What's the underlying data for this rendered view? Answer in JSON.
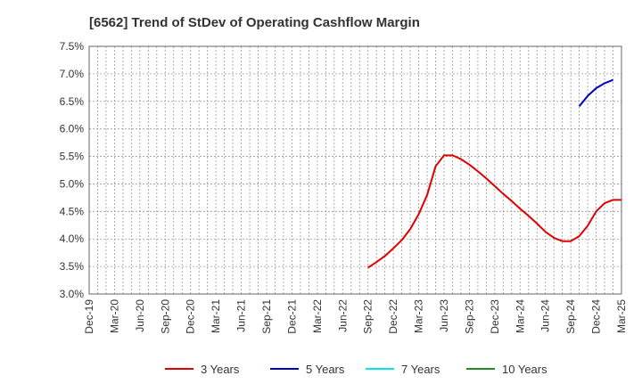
{
  "chart_data": {
    "type": "line",
    "title": "[6562]  Trend of StDev of Operating Cashflow Margin",
    "xlabel": "",
    "ylabel": "",
    "x_ticks": [
      "Dec-19",
      "Mar-20",
      "Jun-20",
      "Sep-20",
      "Dec-20",
      "Mar-21",
      "Jun-21",
      "Sep-21",
      "Dec-21",
      "Mar-22",
      "Jun-22",
      "Sep-22",
      "Dec-22",
      "Mar-23",
      "Jun-23",
      "Sep-23",
      "Dec-23",
      "Mar-24",
      "Jun-24",
      "Sep-24",
      "Dec-24",
      "Mar-25"
    ],
    "y_ticks": [
      "7.5%",
      "7.0%",
      "6.5%",
      "6.0%",
      "5.5%",
      "5.0%",
      "4.5%",
      "4.0%",
      "3.5%",
      "3.0%"
    ],
    "ylim": [
      3.0,
      7.5
    ],
    "xlim": [
      "2019-12",
      "2025-03"
    ],
    "grid": true,
    "legend_position": "bottom",
    "series": [
      {
        "name": "3 Years",
        "color": "#e00000",
        "points": [
          [
            "2022-09",
            3.48
          ],
          [
            "2022-10",
            3.58
          ],
          [
            "2022-11",
            3.69
          ],
          [
            "2022-12",
            3.83
          ],
          [
            "2023-01",
            3.98
          ],
          [
            "2023-02",
            4.18
          ],
          [
            "2023-03",
            4.45
          ],
          [
            "2023-04",
            4.8
          ],
          [
            "2023-05",
            5.32
          ],
          [
            "2023-06",
            5.52
          ],
          [
            "2023-07",
            5.52
          ],
          [
            "2023-08",
            5.45
          ],
          [
            "2023-09",
            5.35
          ],
          [
            "2023-10",
            5.23
          ],
          [
            "2023-11",
            5.1
          ],
          [
            "2023-12",
            4.96
          ],
          [
            "2024-01",
            4.82
          ],
          [
            "2024-02",
            4.69
          ],
          [
            "2024-03",
            4.55
          ],
          [
            "2024-04",
            4.42
          ],
          [
            "2024-05",
            4.28
          ],
          [
            "2024-06",
            4.13
          ],
          [
            "2024-07",
            4.02
          ],
          [
            "2024-08",
            3.96
          ],
          [
            "2024-09",
            3.96
          ],
          [
            "2024-10",
            4.05
          ],
          [
            "2024-11",
            4.24
          ],
          [
            "2024-12",
            4.5
          ],
          [
            "2025-01",
            4.65
          ],
          [
            "2025-02",
            4.71
          ],
          [
            "2025-03",
            4.71
          ]
        ]
      },
      {
        "name": "5 Years",
        "color": "#0000cc",
        "points": [
          [
            "2024-10",
            6.41
          ],
          [
            "2024-11",
            6.6
          ],
          [
            "2024-12",
            6.74
          ],
          [
            "2025-01",
            6.83
          ],
          [
            "2025-02",
            6.89
          ]
        ]
      },
      {
        "name": "7 Years",
        "color": "#00e5ee",
        "points": []
      },
      {
        "name": "10 Years",
        "color": "#228b22",
        "points": []
      }
    ]
  }
}
